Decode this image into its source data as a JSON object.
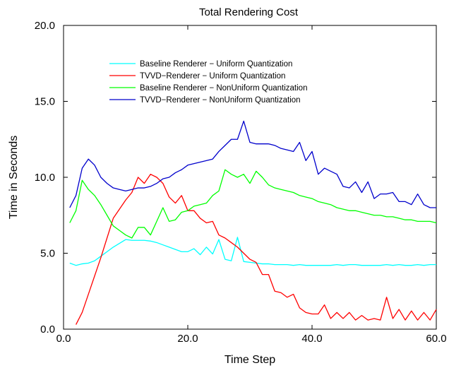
{
  "chart_data": {
    "type": "line",
    "title": "Total Rendering Cost",
    "xlabel": "Time Step",
    "ylabel": "Time in Seconds",
    "xlim": [
      0,
      60
    ],
    "ylim": [
      0,
      20
    ],
    "xticks": [
      0,
      20,
      40,
      60
    ],
    "xtick_labels": [
      "0.0",
      "20.0",
      "40.0",
      "60.0"
    ],
    "yticks": [
      0,
      5,
      10,
      15,
      20
    ],
    "ytick_labels": [
      "0.0",
      "5.0",
      "10.0",
      "15.0",
      "20.0"
    ],
    "grid": false,
    "legend_position": "top-center",
    "x": [
      1,
      2,
      3,
      4,
      5,
      6,
      7,
      8,
      9,
      10,
      11,
      12,
      13,
      14,
      15,
      16,
      17,
      18,
      19,
      20,
      21,
      22,
      23,
      24,
      25,
      26,
      27,
      28,
      29,
      30,
      31,
      32,
      33,
      34,
      35,
      36,
      37,
      38,
      39,
      40,
      41,
      42,
      43,
      44,
      45,
      46,
      47,
      48,
      49,
      50,
      51,
      52,
      53,
      54,
      55,
      56,
      57,
      58,
      59,
      60
    ],
    "series": [
      {
        "name": "Baseline Renderer − Uniform Quantization",
        "color": "#00ffff",
        "values": [
          4.35,
          4.2,
          4.3,
          4.35,
          4.5,
          4.8,
          5.1,
          5.4,
          5.65,
          5.9,
          5.85,
          5.85,
          5.85,
          5.8,
          5.7,
          5.55,
          5.4,
          5.25,
          5.1,
          5.1,
          5.3,
          4.9,
          5.4,
          4.95,
          5.9,
          4.6,
          4.5,
          6.05,
          4.45,
          4.4,
          4.35,
          4.3,
          4.3,
          4.25,
          4.25,
          4.25,
          4.2,
          4.25,
          4.2,
          4.2,
          4.2,
          4.2,
          4.2,
          4.25,
          4.2,
          4.25,
          4.25,
          4.2,
          4.2,
          4.2,
          4.2,
          4.25,
          4.2,
          4.25,
          4.2,
          4.2,
          4.25,
          4.2,
          4.25,
          4.25
        ]
      },
      {
        "name": "TVVD−Renderer − Uniform Quantization",
        "color": "#ff0000",
        "values": [
          null,
          0.3,
          1.1,
          2.3,
          3.5,
          4.7,
          6.0,
          7.3,
          7.9,
          8.5,
          9.0,
          10.0,
          9.6,
          10.2,
          10.0,
          9.6,
          8.7,
          8.3,
          8.8,
          7.8,
          7.8,
          7.3,
          7.0,
          7.1,
          6.2,
          6.0,
          5.7,
          5.4,
          5.0,
          4.6,
          4.4,
          3.6,
          3.6,
          2.5,
          2.4,
          2.1,
          2.3,
          1.4,
          1.1,
          1.0,
          1.0,
          1.6,
          0.7,
          1.1,
          0.7,
          1.1,
          0.6,
          0.9,
          0.6,
          0.7,
          0.6,
          2.1,
          0.7,
          1.3,
          0.6,
          1.2,
          0.6,
          1.1,
          0.6,
          1.3
        ]
      },
      {
        "name": "Baseline Renderer − NonUniform Quantization",
        "color": "#00ff00",
        "values": [
          7.0,
          7.8,
          9.8,
          9.2,
          8.8,
          8.2,
          7.5,
          6.8,
          6.5,
          6.2,
          6.0,
          6.7,
          6.7,
          6.2,
          7.1,
          8.0,
          7.1,
          7.2,
          7.7,
          7.8,
          8.1,
          8.2,
          8.3,
          8.8,
          9.1,
          10.5,
          10.2,
          10.0,
          10.2,
          9.6,
          10.4,
          10.0,
          9.5,
          9.3,
          9.2,
          9.1,
          9.0,
          8.8,
          8.7,
          8.6,
          8.4,
          8.3,
          8.2,
          8.0,
          7.9,
          7.8,
          7.8,
          7.7,
          7.6,
          7.5,
          7.5,
          7.4,
          7.4,
          7.3,
          7.2,
          7.2,
          7.1,
          7.1,
          7.1,
          7.0
        ]
      },
      {
        "name": "TVVD−Renderer − NonUniform Quantization",
        "color": "#0000cc",
        "values": [
          8.0,
          8.8,
          10.6,
          11.2,
          10.8,
          10.0,
          9.6,
          9.3,
          9.2,
          9.1,
          9.2,
          9.3,
          9.3,
          9.4,
          9.6,
          9.9,
          10.0,
          10.3,
          10.5,
          10.8,
          10.9,
          11.0,
          11.1,
          11.2,
          11.7,
          12.1,
          12.5,
          12.5,
          13.7,
          12.3,
          12.2,
          12.2,
          12.2,
          12.1,
          11.9,
          11.8,
          11.7,
          12.3,
          11.1,
          11.7,
          10.2,
          10.6,
          10.4,
          10.2,
          9.4,
          9.3,
          9.7,
          9.0,
          9.7,
          8.6,
          8.9,
          8.9,
          9.0,
          8.4,
          8.4,
          8.2,
          8.9,
          8.2,
          8.0,
          8.0
        ]
      }
    ]
  }
}
